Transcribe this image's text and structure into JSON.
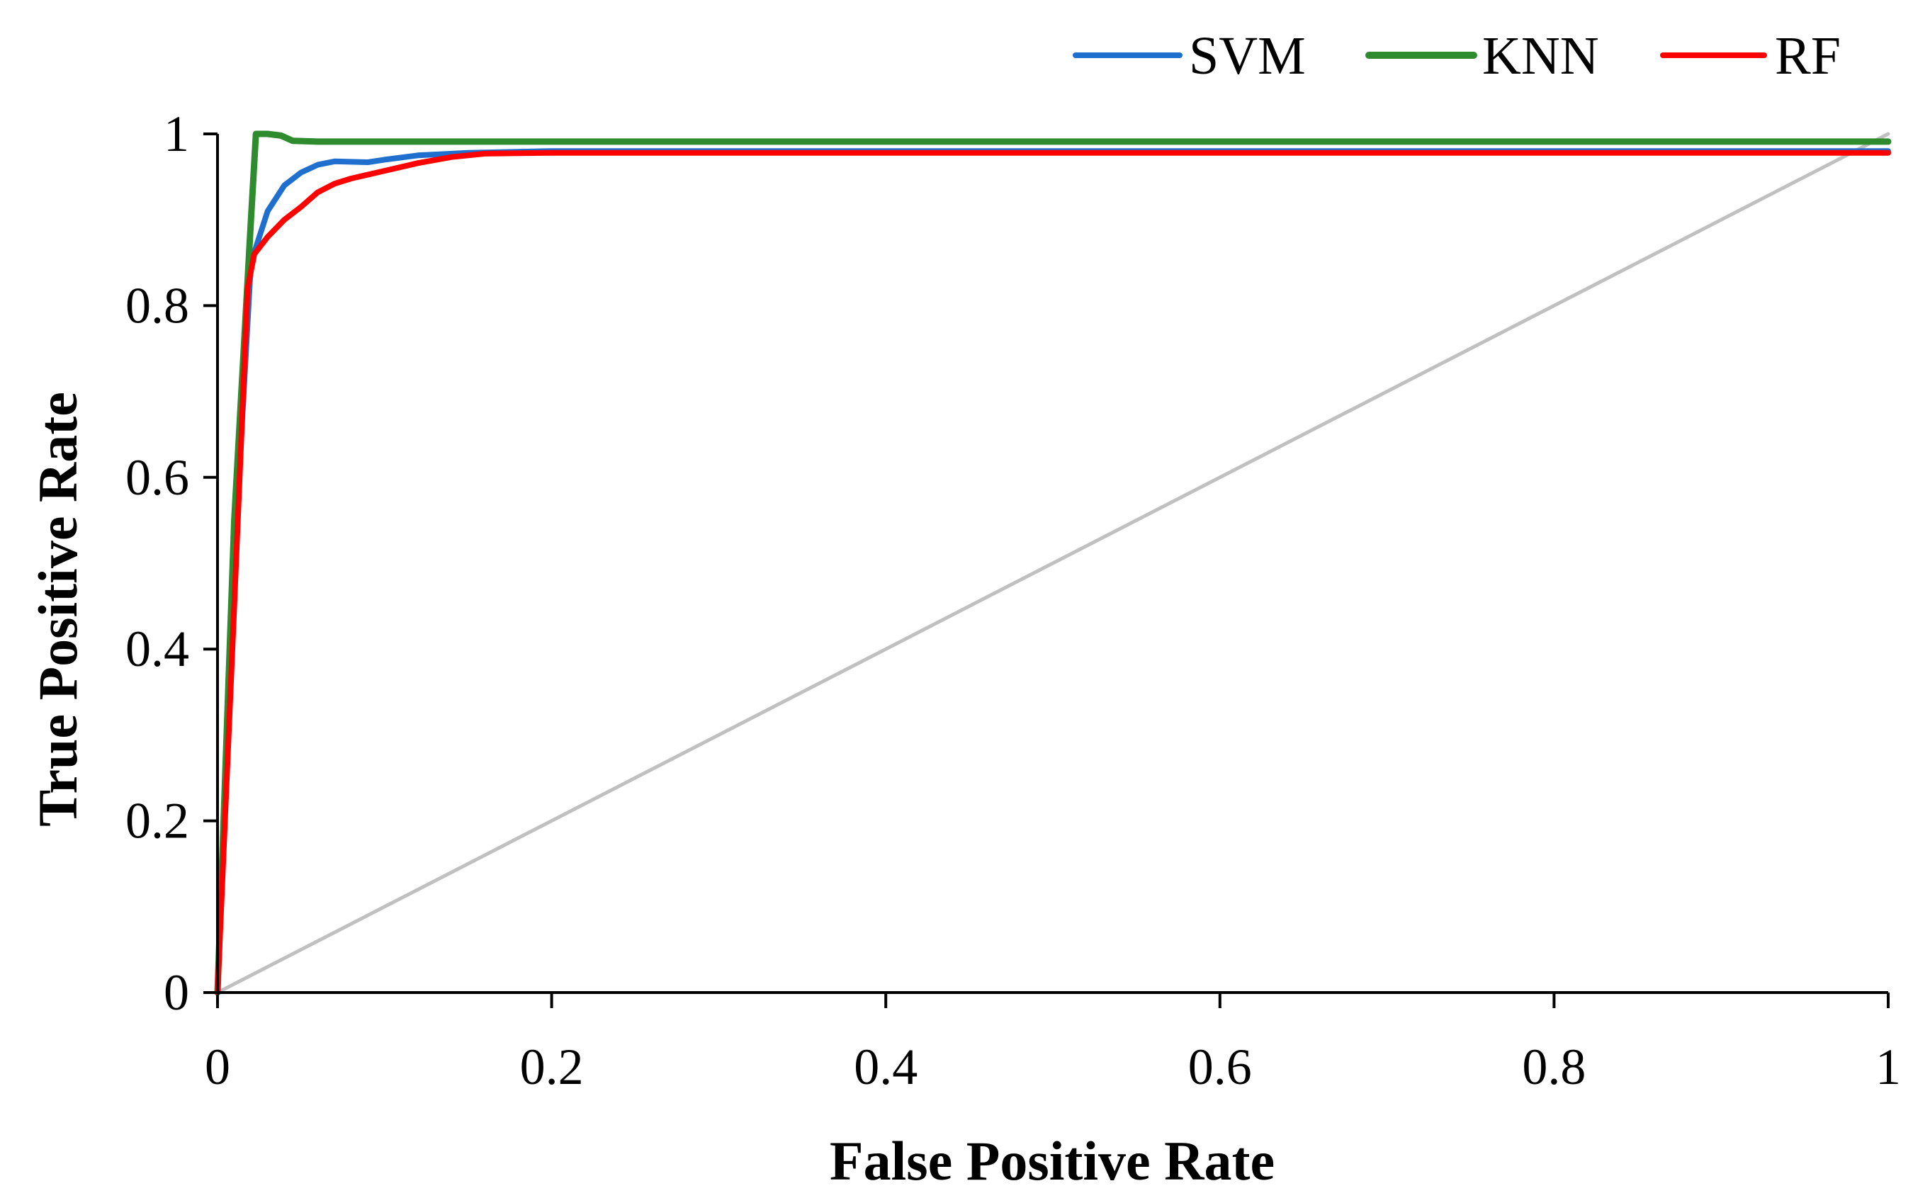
{
  "chart_data": {
    "type": "line",
    "title": "",
    "xlabel": "False Positive Rate",
    "ylabel": "True Positive Rate",
    "xlim": [
      0,
      1
    ],
    "ylim": [
      0,
      1
    ],
    "xticks": [
      0,
      0.2,
      0.4,
      0.6,
      0.8,
      1
    ],
    "yticks": [
      0,
      0.2,
      0.4,
      0.6,
      0.8,
      1
    ],
    "xtick_labels": [
      "0",
      "0.2",
      "0.4",
      "0.6",
      "0.8",
      "1"
    ],
    "ytick_labels": [
      "0",
      "0.2",
      "0.4",
      "0.6",
      "0.8",
      "1"
    ],
    "grid": false,
    "legend_position": "top-right",
    "series": [
      {
        "name": "SVM",
        "color": "#1f6fcf",
        "points": [
          [
            0,
            0
          ],
          [
            0.01,
            0.5
          ],
          [
            0.02,
            0.85
          ],
          [
            0.03,
            0.91
          ],
          [
            0.04,
            0.94
          ],
          [
            0.05,
            0.955
          ],
          [
            0.06,
            0.964
          ],
          [
            0.07,
            0.968
          ],
          [
            0.09,
            0.967
          ],
          [
            0.1,
            0.97
          ],
          [
            0.12,
            0.975
          ],
          [
            0.15,
            0.978
          ],
          [
            0.2,
            0.98
          ],
          [
            1,
            0.98
          ]
        ]
      },
      {
        "name": "KNN",
        "color": "#2e8b2e",
        "points": [
          [
            0,
            0
          ],
          [
            0.01,
            0.55
          ],
          [
            0.02,
            0.9
          ],
          [
            0.023,
            1.0
          ],
          [
            0.03,
            1.0
          ],
          [
            0.038,
            0.998
          ],
          [
            0.045,
            0.992
          ],
          [
            0.06,
            0.991
          ],
          [
            0.2,
            0.991
          ],
          [
            1,
            0.991
          ]
        ]
      },
      {
        "name": "RF",
        "color": "#ff0000",
        "points": [
          [
            0,
            0
          ],
          [
            0.01,
            0.45
          ],
          [
            0.018,
            0.82
          ],
          [
            0.022,
            0.86
          ],
          [
            0.03,
            0.88
          ],
          [
            0.04,
            0.9
          ],
          [
            0.05,
            0.915
          ],
          [
            0.06,
            0.932
          ],
          [
            0.07,
            0.942
          ],
          [
            0.08,
            0.948
          ],
          [
            0.1,
            0.957
          ],
          [
            0.12,
            0.966
          ],
          [
            0.14,
            0.973
          ],
          [
            0.16,
            0.977
          ],
          [
            0.2,
            0.978
          ],
          [
            1,
            0.978
          ]
        ]
      },
      {
        "name": "",
        "color": "#c0c0c0",
        "points": [
          [
            0,
            0
          ],
          [
            1,
            1
          ]
        ]
      }
    ]
  }
}
